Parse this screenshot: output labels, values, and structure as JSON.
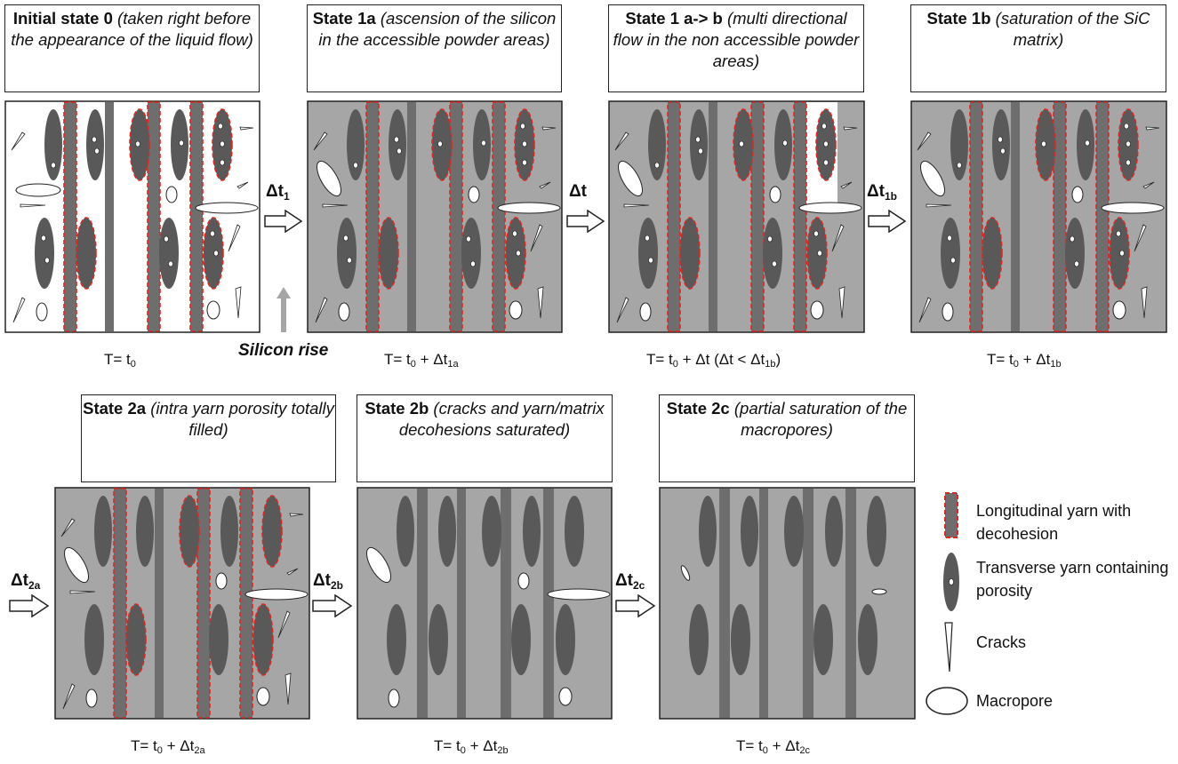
{
  "top_row": [
    {
      "heading": "Initial state 0",
      "desc": "(taken right before the appearance of the liquid flow)",
      "time": {
        "base": "T= t",
        "sub0": "0",
        "rest": "",
        "restsub": "",
        "tail": ""
      }
    },
    {
      "heading": "State 1a",
      "desc": "(ascension of the silicon in the accessible powder areas)",
      "time": {
        "base": "T= t",
        "sub0": "0",
        "rest": " + Δt",
        "restsub": "1a",
        "tail": ""
      }
    },
    {
      "heading": "State 1 a-> b",
      "desc": "(multi directional flow in the non accessible powder areas)",
      "time": {
        "base": "T= t",
        "sub0": "0",
        "rest": " + Δt (Δt < Δt",
        "restsub": "1b",
        "tail": ")"
      }
    },
    {
      "heading": "State 1b",
      "desc": "(saturation of the SiC matrix)",
      "time": {
        "base": "T= t",
        "sub0": "0",
        "rest": " + Δt",
        "restsub": "1b",
        "tail": ""
      }
    }
  ],
  "bottom_row": [
    {
      "heading": "State 2a",
      "desc": "(intra yarn porosity totally filled)",
      "time": {
        "base": "T= t",
        "sub0": "0",
        "rest": " + Δt",
        "restsub": "2a",
        "tail": ""
      }
    },
    {
      "heading": "State 2b",
      "desc": "(cracks and yarn/matrix decohesions saturated)",
      "time": {
        "base": "T= t",
        "sub0": "0",
        "rest": " + Δt",
        "restsub": "2b",
        "tail": ""
      }
    },
    {
      "heading": "State 2c",
      "desc": "(partial saturation of the macropores)",
      "time": {
        "base": "T= t",
        "sub0": "0",
        "rest": " + Δt",
        "restsub": "2c",
        "tail": ""
      }
    }
  ],
  "arrows": [
    {
      "main": "Δt",
      "sub": "1"
    },
    {
      "main": "Δt",
      "sub": ""
    },
    {
      "main": "Δt",
      "sub": "1b"
    },
    {
      "main": "Δt",
      "sub": "2a"
    },
    {
      "main": "Δt",
      "sub": "2b"
    },
    {
      "main": "Δt",
      "sub": "2c"
    }
  ],
  "silicon_rise": "Silicon rise",
  "legend": [
    {
      "label": "Longitudinal yarn with decohesion",
      "icon": "longitudinal-yarn-icon"
    },
    {
      "label": "Transverse yarn containing porosity",
      "icon": "transverse-yarn-icon"
    },
    {
      "label": "Cracks",
      "icon": "crack-icon"
    },
    {
      "label": "Macropore",
      "icon": "macropore-icon"
    }
  ],
  "colors": {
    "matrix_gray": "#a6a6a6",
    "yarn_dark": "#595959",
    "strip": "#6e6e6e",
    "decohesion_red": "#e0261f",
    "outline": "#222222"
  }
}
